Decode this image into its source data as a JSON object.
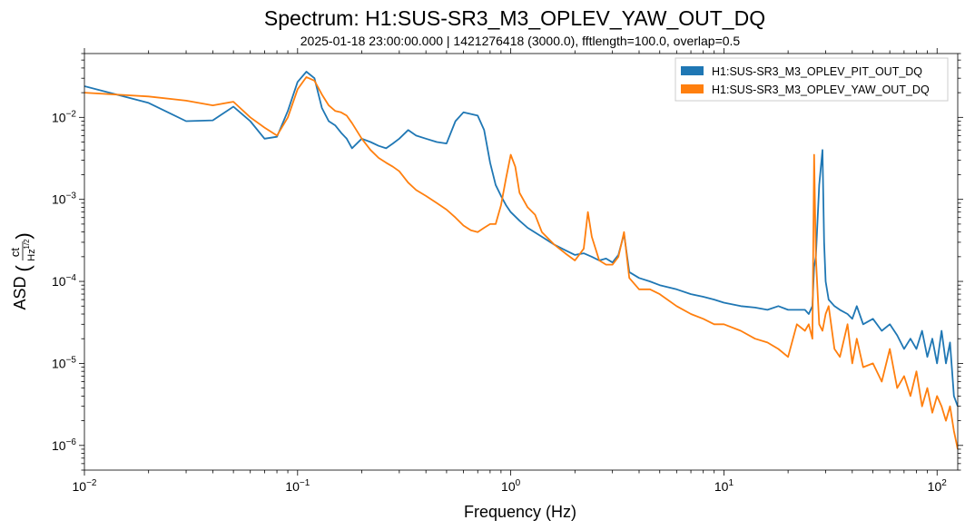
{
  "chart_data": {
    "type": "line",
    "title": "Spectrum: H1:SUS-SR3_M3_OPLEV_YAW_OUT_DQ",
    "subtitle": "2025-01-18 23:00:00.000 | 1421276418 (3000.0), fftlength=100.0, overlap=0.5",
    "xlabel": "Frequency (Hz)",
    "ylabel": "ASD",
    "ylabel_unit_numerator": "ct",
    "ylabel_unit_denominator": "Hz",
    "ylabel_unit_exponent": "1/2",
    "xscale": "log",
    "yscale": "log",
    "xlim": [
      0.01,
      125
    ],
    "ylim": [
      5e-07,
      0.06
    ],
    "x_ticks": [
      {
        "value": 0.01,
        "base": "10",
        "exp": "−2"
      },
      {
        "value": 0.1,
        "base": "10",
        "exp": "−1"
      },
      {
        "value": 1,
        "base": "10",
        "exp": "0"
      },
      {
        "value": 10,
        "base": "10",
        "exp": "1"
      },
      {
        "value": 100,
        "base": "10",
        "exp": "2"
      }
    ],
    "y_ticks": [
      {
        "value": 1e-06,
        "base": "10",
        "exp": "−6"
      },
      {
        "value": 1e-05,
        "base": "10",
        "exp": "−5"
      },
      {
        "value": 0.0001,
        "base": "10",
        "exp": "−4"
      },
      {
        "value": 0.001,
        "base": "10",
        "exp": "−3"
      },
      {
        "value": 0.01,
        "base": "10",
        "exp": "−2"
      }
    ],
    "grid": false,
    "legend_position": "top-right",
    "series": [
      {
        "name": "H1:SUS-SR3_M3_OPLEV_PIT_OUT_DQ",
        "color": "#1f77b4",
        "x": [
          0.01,
          0.02,
          0.03,
          0.04,
          0.05,
          0.06,
          0.07,
          0.08,
          0.09,
          0.1,
          0.11,
          0.12,
          0.13,
          0.14,
          0.15,
          0.16,
          0.17,
          0.18,
          0.2,
          0.22,
          0.24,
          0.26,
          0.28,
          0.3,
          0.33,
          0.36,
          0.4,
          0.45,
          0.5,
          0.55,
          0.6,
          0.65,
          0.7,
          0.75,
          0.8,
          0.85,
          0.9,
          0.95,
          1.0,
          1.1,
          1.2,
          1.4,
          1.6,
          1.8,
          2.0,
          2.2,
          2.4,
          2.6,
          2.8,
          3.0,
          3.2,
          3.4,
          3.6,
          4.0,
          4.5,
          5.0,
          6.0,
          7.0,
          8.0,
          9.0,
          10.0,
          12.0,
          14.0,
          16.0,
          18.0,
          20.0,
          22.0,
          24.0,
          25.0,
          26.0,
          26.5,
          27.0,
          28.0,
          29.0,
          29.5,
          30.0,
          31.0,
          33.0,
          35.0,
          38.0,
          40.0,
          42.0,
          45.0,
          50.0,
          55.0,
          60.0,
          65.0,
          70.0,
          75.0,
          80.0,
          85.0,
          90.0,
          95.0,
          100.0,
          105.0,
          110.0,
          115.0,
          120.0,
          125.0
        ],
        "y": [
          0.024,
          0.015,
          0.009,
          0.0092,
          0.0135,
          0.009,
          0.0055,
          0.0058,
          0.012,
          0.027,
          0.036,
          0.03,
          0.013,
          0.009,
          0.008,
          0.0065,
          0.0055,
          0.0042,
          0.0055,
          0.005,
          0.0045,
          0.0042,
          0.0048,
          0.0055,
          0.007,
          0.006,
          0.0055,
          0.005,
          0.0048,
          0.009,
          0.0115,
          0.011,
          0.0105,
          0.007,
          0.0028,
          0.0015,
          0.0011,
          0.00085,
          0.0007,
          0.00055,
          0.00045,
          0.00035,
          0.00028,
          0.00024,
          0.00021,
          0.00022,
          0.0002,
          0.00018,
          0.00019,
          0.00017,
          0.00021,
          0.00038,
          0.00013,
          0.00011,
          0.0001,
          9e-05,
          8e-05,
          7e-05,
          6.5e-05,
          6e-05,
          5.5e-05,
          5e-05,
          4.8e-05,
          4.5e-05,
          5e-05,
          4.5e-05,
          4.5e-05,
          4.5e-05,
          4e-05,
          5e-05,
          0.00015,
          0.0002,
          0.0015,
          0.004,
          0.0003,
          0.0001,
          6e-05,
          5e-05,
          4.5e-05,
          4e-05,
          3.5e-05,
          5e-05,
          3e-05,
          3.5e-05,
          2.5e-05,
          3e-05,
          2.2e-05,
          1.5e-05,
          2e-05,
          1.5e-05,
          2.5e-05,
          1.2e-05,
          2e-05,
          1e-05,
          2.5e-05,
          1e-05,
          1.8e-05,
          4e-06,
          3e-06
        ]
      },
      {
        "name": "H1:SUS-SR3_M3_OPLEV_YAW_OUT_DQ",
        "color": "#ff7f0e",
        "x": [
          0.01,
          0.02,
          0.03,
          0.04,
          0.05,
          0.06,
          0.07,
          0.08,
          0.09,
          0.1,
          0.11,
          0.12,
          0.13,
          0.14,
          0.15,
          0.16,
          0.17,
          0.18,
          0.2,
          0.22,
          0.24,
          0.26,
          0.28,
          0.3,
          0.33,
          0.36,
          0.4,
          0.45,
          0.5,
          0.55,
          0.6,
          0.65,
          0.7,
          0.75,
          0.8,
          0.85,
          0.9,
          0.95,
          1.0,
          1.05,
          1.1,
          1.2,
          1.3,
          1.4,
          1.6,
          1.8,
          2.0,
          2.2,
          2.3,
          2.4,
          2.6,
          2.8,
          3.0,
          3.2,
          3.4,
          3.6,
          4.0,
          4.5,
          5.0,
          6.0,
          7.0,
          8.0,
          9.0,
          10.0,
          12.0,
          14.0,
          16.0,
          18.0,
          20.0,
          22.0,
          24.0,
          25.0,
          26.0,
          26.5,
          27.0,
          28.0,
          29.0,
          30.0,
          31.0,
          33.0,
          35.0,
          38.0,
          40.0,
          42.0,
          45.0,
          50.0,
          55.0,
          60.0,
          65.0,
          70.0,
          75.0,
          80.0,
          85.0,
          90.0,
          95.0,
          100.0,
          105.0,
          110.0,
          115.0,
          120.0,
          125.0
        ],
        "y": [
          0.02,
          0.018,
          0.016,
          0.014,
          0.0155,
          0.01,
          0.0075,
          0.006,
          0.01,
          0.022,
          0.031,
          0.028,
          0.019,
          0.014,
          0.012,
          0.0115,
          0.0105,
          0.0085,
          0.0055,
          0.004,
          0.0032,
          0.0028,
          0.0025,
          0.0022,
          0.0016,
          0.0013,
          0.0011,
          0.0009,
          0.00075,
          0.0006,
          0.00048,
          0.00042,
          0.0004,
          0.00045,
          0.0005,
          0.0005,
          0.00085,
          0.0018,
          0.0035,
          0.0025,
          0.0012,
          0.0008,
          0.00065,
          0.0004,
          0.00028,
          0.00022,
          0.00018,
          0.00025,
          0.0007,
          0.00035,
          0.00018,
          0.00016,
          0.00016,
          0.0002,
          0.0004,
          0.00011,
          8e-05,
          8e-05,
          7e-05,
          5e-05,
          4e-05,
          3.5e-05,
          3e-05,
          3e-05,
          2.5e-05,
          2e-05,
          1.8e-05,
          1.5e-05,
          1.2e-05,
          3e-05,
          2.5e-05,
          3e-05,
          2e-05,
          0.0035,
          0.0002,
          3e-05,
          2.5e-05,
          4e-05,
          5e-05,
          1.5e-05,
          1.2e-05,
          3e-05,
          1e-05,
          2e-05,
          9e-06,
          1e-05,
          6e-06,
          1.5e-05,
          5e-06,
          7e-06,
          4e-06,
          8e-06,
          3e-06,
          5e-06,
          2.5e-06,
          4e-06,
          3e-06,
          2e-06,
          3e-06,
          1.5e-06,
          9e-07
        ]
      }
    ]
  }
}
